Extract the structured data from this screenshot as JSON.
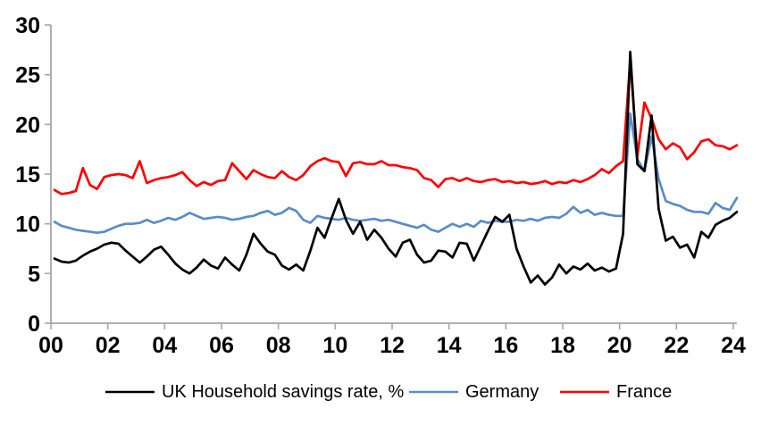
{
  "chart_data": {
    "type": "line",
    "title": "",
    "xlabel": "",
    "ylabel": "",
    "x_unit": "quarterly, 2000Q1 - 2024Q1",
    "x_start_year": 2000,
    "x_step_years": 0.25,
    "x_tick_labels": [
      "00",
      "02",
      "04",
      "06",
      "08",
      "10",
      "12",
      "14",
      "16",
      "18",
      "20",
      "22",
      "24"
    ],
    "x_tick_interval_years": 2,
    "y_ticks": [
      "0",
      "5",
      "10",
      "15",
      "20",
      "25",
      "30"
    ],
    "ylim": [
      0,
      30
    ],
    "grid": false,
    "legend_position": "bottom",
    "colors": {
      "axis": "#a6a6a6",
      "text": "#000000",
      "background": "#ffffff"
    },
    "series": [
      {
        "name": "UK Household savings rate, %",
        "color": "#000000",
        "values": [
          6.5,
          6.2,
          6.1,
          6.3,
          6.8,
          7.2,
          7.5,
          7.9,
          8.1,
          8.0,
          7.3,
          6.7,
          6.1,
          6.7,
          7.4,
          7.7,
          6.9,
          6.0,
          5.4,
          5.0,
          5.6,
          6.4,
          5.8,
          5.5,
          6.6,
          5.9,
          5.3,
          6.9,
          9.0,
          8.0,
          7.2,
          6.9,
          5.8,
          5.4,
          5.9,
          5.3,
          7.3,
          9.6,
          8.6,
          10.6,
          12.5,
          10.4,
          9.0,
          10.2,
          8.4,
          9.4,
          8.6,
          7.5,
          6.7,
          8.1,
          8.4,
          6.9,
          6.1,
          6.3,
          7.3,
          7.2,
          6.6,
          8.1,
          8.0,
          6.3,
          7.8,
          9.3,
          10.7,
          10.2,
          10.9,
          7.5,
          5.7,
          4.1,
          4.8,
          3.9,
          4.6,
          5.9,
          5.0,
          5.7,
          5.4,
          6.0,
          5.3,
          5.6,
          5.2,
          5.5,
          9.0,
          27.3,
          16.0,
          15.3,
          20.9,
          11.5,
          8.3,
          8.7,
          7.6,
          7.9,
          6.6,
          9.2,
          8.6,
          9.9,
          10.3,
          10.6,
          11.2
        ]
      },
      {
        "name": "Germany",
        "color": "#5b8cc6",
        "values": [
          10.2,
          9.8,
          9.6,
          9.4,
          9.3,
          9.2,
          9.1,
          9.2,
          9.5,
          9.8,
          10.0,
          10.0,
          10.1,
          10.4,
          10.1,
          10.3,
          10.6,
          10.4,
          10.7,
          11.1,
          10.8,
          10.5,
          10.6,
          10.7,
          10.6,
          10.4,
          10.5,
          10.7,
          10.8,
          11.1,
          11.3,
          10.9,
          11.1,
          11.6,
          11.3,
          10.4,
          10.1,
          10.8,
          10.6,
          10.5,
          10.4,
          10.6,
          10.4,
          10.3,
          10.4,
          10.5,
          10.3,
          10.4,
          10.2,
          10.0,
          9.8,
          9.6,
          9.9,
          9.4,
          9.2,
          9.6,
          10.0,
          9.7,
          10.0,
          9.7,
          10.3,
          10.1,
          10.3,
          10.2,
          10.2,
          10.4,
          10.3,
          10.5,
          10.3,
          10.6,
          10.7,
          10.6,
          11.0,
          11.7,
          11.1,
          11.4,
          10.9,
          11.1,
          10.9,
          10.8,
          10.8,
          21.1,
          16.5,
          15.3,
          18.8,
          14.5,
          12.3,
          12.0,
          11.8,
          11.4,
          11.2,
          11.2,
          11.0,
          12.1,
          11.6,
          11.4,
          12.6
        ]
      },
      {
        "name": "France",
        "color": "#ff0000",
        "values": [
          13.4,
          13.0,
          13.1,
          13.3,
          15.6,
          13.9,
          13.5,
          14.7,
          14.9,
          15.0,
          14.9,
          14.6,
          16.3,
          14.1,
          14.4,
          14.6,
          14.7,
          14.9,
          15.2,
          14.4,
          13.8,
          14.2,
          13.9,
          14.3,
          14.4,
          16.1,
          15.3,
          14.5,
          15.4,
          15.0,
          14.7,
          14.6,
          15.3,
          14.7,
          14.4,
          14.9,
          15.8,
          16.3,
          16.6,
          16.3,
          16.2,
          14.8,
          16.1,
          16.2,
          16.0,
          16.0,
          16.3,
          15.9,
          15.9,
          15.7,
          15.6,
          15.4,
          14.6,
          14.4,
          13.7,
          14.5,
          14.6,
          14.3,
          14.6,
          14.3,
          14.2,
          14.4,
          14.5,
          14.2,
          14.3,
          14.1,
          14.2,
          14.0,
          14.1,
          14.3,
          14.0,
          14.2,
          14.1,
          14.4,
          14.2,
          14.5,
          14.9,
          15.5,
          15.1,
          15.8,
          16.3,
          26.5,
          16.8,
          22.2,
          20.6,
          18.5,
          17.5,
          18.1,
          17.7,
          16.5,
          17.2,
          18.3,
          18.5,
          17.9,
          17.8,
          17.5,
          17.9
        ]
      }
    ]
  },
  "legend": {
    "items": [
      {
        "label": "UK Household savings rate, %"
      },
      {
        "label": "Germany"
      },
      {
        "label": "France"
      }
    ]
  }
}
